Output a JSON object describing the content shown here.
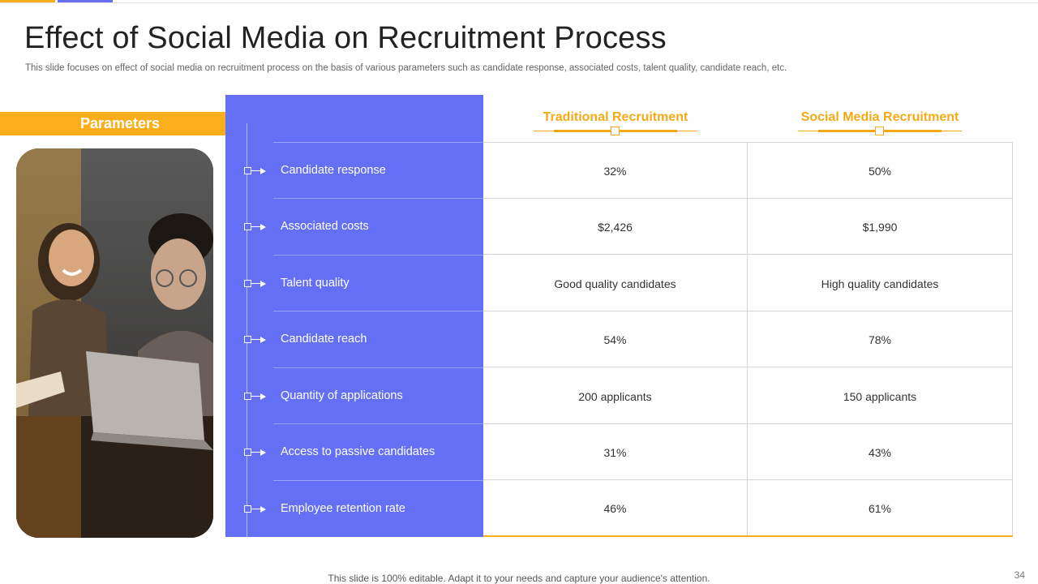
{
  "colors": {
    "accent_orange": "#fbae1c",
    "accent_blue": "#6370f6",
    "header_gold": "#f4a917"
  },
  "slide": {
    "title": "Effect of Social Media on Recruitment Process",
    "subtitle": "This slide focuses on effect of social media on recruitment process on the basis of various parameters such as candidate response, associated costs, talent quality, candidate reach, etc.",
    "parameters_label": "Parameters",
    "columns": {
      "traditional": "Traditional Recruitment",
      "social": "Social Media Recruitment"
    },
    "rows": [
      {
        "parameter": "Candidate response",
        "traditional": "32%",
        "social": "50%"
      },
      {
        "parameter": "Associated costs",
        "traditional": "$2,426",
        "social": "$1,990"
      },
      {
        "parameter": "Talent quality",
        "traditional": "Good quality candidates",
        "social": "High quality candidates"
      },
      {
        "parameter": "Candidate reach",
        "traditional": "54%",
        "social": "78%"
      },
      {
        "parameter": "Quantity of applications",
        "traditional": "200 applicants",
        "social": "150 applicants"
      },
      {
        "parameter": "Access to passive candidates",
        "traditional": "31%",
        "social": "43%"
      },
      {
        "parameter": "Employee retention rate",
        "traditional": "46%",
        "social": "61%"
      }
    ],
    "footer": "This slide is 100% editable. Adapt it to your needs and capture your audience's attention.",
    "page_number": "34"
  }
}
